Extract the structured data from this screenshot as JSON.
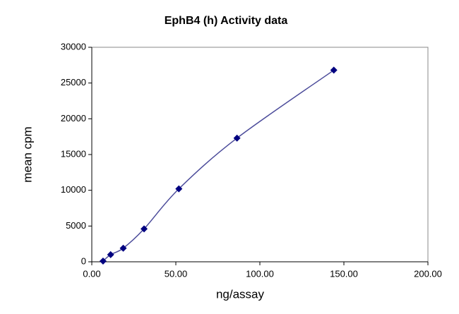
{
  "chart_data": {
    "type": "scatter",
    "title": "EphB4 (h) Activity data",
    "x_label": "ng/assay",
    "y_label": "mean cpm",
    "series": [
      {
        "color": "#000080",
        "x": [
          6.7,
          11.2,
          18.7,
          31.1,
          51.8,
          86.4,
          144
        ],
        "values": [
          100,
          1000,
          1900,
          4600,
          10200,
          17300,
          26800
        ]
      }
    ],
    "xlim": [
      0,
      200
    ],
    "xticks": [
      {
        "value": 0,
        "label": "0.00"
      },
      {
        "value": 50,
        "label": "50.00"
      },
      {
        "value": 100,
        "label": "100.00"
      },
      {
        "value": 150,
        "label": "150.00"
      },
      {
        "value": 200,
        "label": "200.00"
      }
    ],
    "ylim": [
      0,
      30000
    ],
    "yticks": [
      0,
      5000,
      10000,
      15000,
      20000,
      25000,
      30000
    ],
    "line_color": "#4b4b9a"
  }
}
